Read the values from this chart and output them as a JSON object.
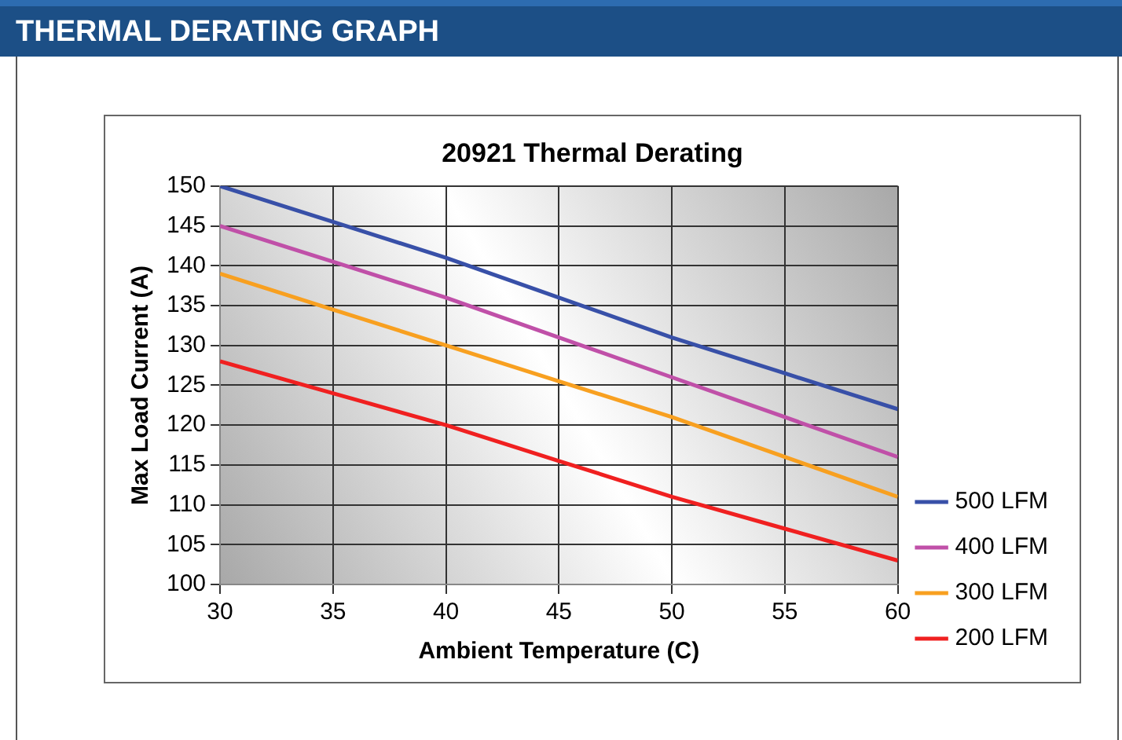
{
  "chart_data": {
    "type": "line",
    "title": "THERMAL DERATING GRAPH",
    "subtitle": "20921 Thermal Derating",
    "xlabel": "Ambient Temperature (C)",
    "ylabel": "Max Load Current (A)",
    "x": [
      30,
      35,
      40,
      45,
      50,
      55,
      60
    ],
    "series": [
      {
        "name": "500 LFM",
        "color": "#3850a8",
        "values": [
          150,
          145.5,
          141,
          136,
          131,
          126.5,
          122
        ]
      },
      {
        "name": "400 LFM",
        "color": "#c050a8",
        "values": [
          145,
          140.5,
          136,
          131,
          126,
          121,
          116
        ]
      },
      {
        "name": "300 LFM",
        "color": "#f8a020",
        "values": [
          139,
          134.5,
          130,
          125.5,
          121,
          116,
          111
        ]
      },
      {
        "name": "200 LFM",
        "color": "#f02020",
        "values": [
          128,
          124,
          120,
          115.5,
          111,
          107,
          103
        ]
      }
    ],
    "xlim": [
      30,
      60
    ],
    "xticks": [
      30,
      35,
      40,
      45,
      50,
      55,
      60
    ],
    "ylim": [
      100,
      150
    ],
    "yticks": [
      100,
      105,
      110,
      115,
      120,
      125,
      130,
      135,
      140,
      145,
      150
    ],
    "grid": true,
    "legend": "right",
    "marker": "none",
    "line_style": "solid"
  }
}
